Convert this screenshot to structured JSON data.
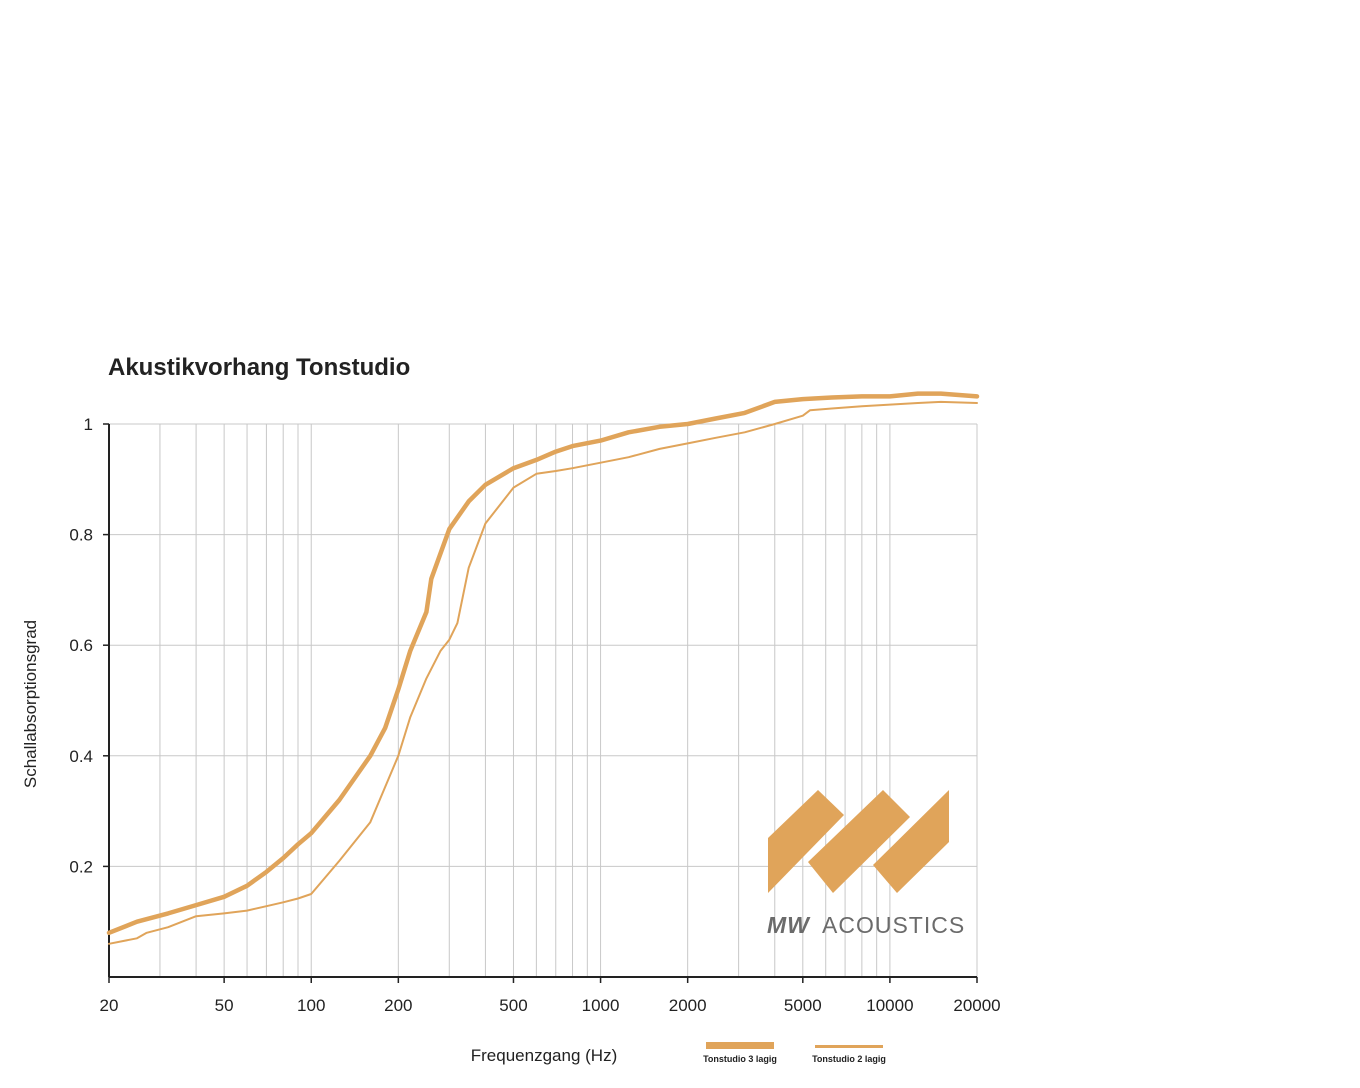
{
  "chart_data": {
    "type": "line",
    "title": "Akustikvorhang Tonstudio",
    "xlabel": "Frequenzgang (Hz)",
    "ylabel": "Schallabsorptionsgrad",
    "x_scale": "log",
    "xlim": [
      20,
      20000
    ],
    "ylim": [
      0,
      1
    ],
    "x_ticks": [
      "20",
      "50",
      "100",
      "200",
      "500",
      "1000",
      "2000",
      "5000",
      "10000",
      "20000"
    ],
    "y_ticks": [
      "0.2",
      "0.4",
      "0.6",
      "0.8",
      "1"
    ],
    "grid": true,
    "legend_position": "bottom",
    "series": [
      {
        "name": "Tonstudio 3 lagig",
        "color": "#e0a45a",
        "weight": "thick",
        "x": [
          20,
          25,
          32,
          40,
          50,
          60,
          70,
          80,
          90,
          100,
          125,
          160,
          180,
          200,
          220,
          250,
          260,
          300,
          350,
          400,
          500,
          600,
          700,
          800,
          1000,
          1250,
          1600,
          2000,
          2500,
          3150,
          4000,
          5000,
          6300,
          8000,
          10000,
          12500,
          15000,
          20000
        ],
        "y": [
          0.08,
          0.1,
          0.115,
          0.13,
          0.145,
          0.165,
          0.19,
          0.215,
          0.24,
          0.26,
          0.32,
          0.4,
          0.45,
          0.52,
          0.59,
          0.66,
          0.72,
          0.81,
          0.86,
          0.89,
          0.92,
          0.935,
          0.95,
          0.96,
          0.97,
          0.985,
          0.995,
          1.0,
          1.01,
          1.02,
          1.04,
          1.045,
          1.048,
          1.05,
          1.05,
          1.055,
          1.055,
          1.05
        ]
      },
      {
        "name": "Tonstudio 2 lagig",
        "color": "#e0a45a",
        "weight": "thin",
        "x": [
          20,
          25,
          27,
          32,
          40,
          50,
          60,
          70,
          80,
          90,
          100,
          125,
          160,
          200,
          220,
          250,
          280,
          300,
          320,
          350,
          400,
          500,
          600,
          700,
          800,
          1000,
          1250,
          1600,
          2000,
          2500,
          3150,
          4000,
          5000,
          5300,
          6300,
          8000,
          10000,
          12500,
          15000,
          20000
        ],
        "y": [
          0.06,
          0.07,
          0.08,
          0.09,
          0.11,
          0.115,
          0.12,
          0.128,
          0.135,
          0.142,
          0.15,
          0.21,
          0.28,
          0.4,
          0.47,
          0.54,
          0.59,
          0.61,
          0.64,
          0.74,
          0.82,
          0.885,
          0.91,
          0.915,
          0.92,
          0.93,
          0.94,
          0.955,
          0.965,
          0.975,
          0.985,
          1.0,
          1.015,
          1.025,
          1.028,
          1.032,
          1.035,
          1.038,
          1.04,
          1.038
        ]
      }
    ]
  },
  "logo": {
    "text_bold": "MW",
    "text_regular": "ACOUSTICS",
    "color": "#e0a45a"
  }
}
